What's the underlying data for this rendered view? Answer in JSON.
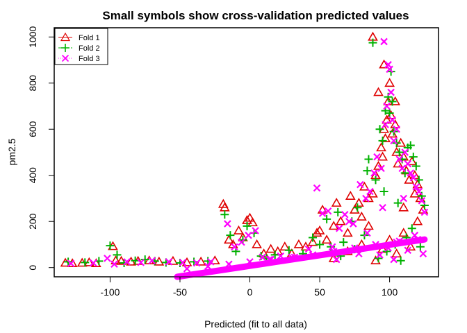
{
  "chart_data": {
    "type": "scatter",
    "title": "Small symbols show cross-validation predicted values",
    "xlabel": "Predicted (fit to all data)",
    "ylabel": "pm2.5",
    "xlim": [
      -140,
      135
    ],
    "ylim": [
      -40,
      1040
    ],
    "x_ticks": [
      -100,
      -50,
      0,
      50,
      100
    ],
    "y_ticks": [
      0,
      200,
      400,
      600,
      800,
      1000
    ],
    "x_tick_labels": [
      "-100",
      "-50",
      "0",
      "50",
      "100"
    ],
    "y_tick_labels": [
      "0",
      "200",
      "400",
      "600",
      "800",
      "1000"
    ],
    "grid": false,
    "legend_position": "top-left",
    "series": [
      {
        "name": "Fold 1",
        "marker": "triangle",
        "color": "#DF0000",
        "points": [
          [
            -132,
            20
          ],
          [
            -127,
            18
          ],
          [
            -120,
            20
          ],
          [
            -115,
            22
          ],
          [
            -110,
            18
          ],
          [
            -98,
            92
          ],
          [
            -96,
            30
          ],
          [
            -92,
            28
          ],
          [
            -85,
            25
          ],
          [
            -80,
            28
          ],
          [
            -72,
            30
          ],
          [
            -65,
            25
          ],
          [
            -55,
            28
          ],
          [
            -45,
            22
          ],
          [
            -35,
            25
          ],
          [
            -25,
            30
          ],
          [
            -19,
            275
          ],
          [
            -18,
            260
          ],
          [
            -15,
            120
          ],
          [
            -12,
            100
          ],
          [
            -8,
            160
          ],
          [
            -5,
            130
          ],
          [
            -2,
            205
          ],
          [
            0,
            215
          ],
          [
            2,
            195
          ],
          [
            5,
            100
          ],
          [
            10,
            60
          ],
          [
            15,
            80
          ],
          [
            20,
            70
          ],
          [
            25,
            90
          ],
          [
            30,
            60
          ],
          [
            35,
            100
          ],
          [
            40,
            90
          ],
          [
            45,
            110
          ],
          [
            48,
            150
          ],
          [
            50,
            160
          ],
          [
            52,
            250
          ],
          [
            55,
            120
          ],
          [
            60,
            180
          ],
          [
            62,
            280
          ],
          [
            65,
            200
          ],
          [
            70,
            150
          ],
          [
            72,
            310
          ],
          [
            75,
            250
          ],
          [
            78,
            280
          ],
          [
            80,
            220
          ],
          [
            82,
            350
          ],
          [
            85,
            300
          ],
          [
            88,
            320
          ],
          [
            90,
            400
          ],
          [
            92,
            440
          ],
          [
            94,
            520
          ],
          [
            95,
            480
          ],
          [
            96,
            600
          ],
          [
            97,
            560
          ],
          [
            98,
            640
          ],
          [
            99,
            720
          ],
          [
            100,
            800
          ],
          [
            101,
            660
          ],
          [
            102,
            580
          ],
          [
            104,
            620
          ],
          [
            105,
            500
          ],
          [
            106,
            450
          ],
          [
            108,
            540
          ],
          [
            110,
            480
          ],
          [
            112,
            420
          ],
          [
            114,
            380
          ],
          [
            116,
            460
          ],
          [
            118,
            400
          ],
          [
            120,
            360
          ],
          [
            122,
            300
          ],
          [
            124,
            250
          ],
          [
            90,
            30
          ],
          [
            95,
            80
          ],
          [
            100,
            120
          ],
          [
            105,
            60
          ],
          [
            110,
            150
          ],
          [
            115,
            90
          ],
          [
            120,
            200
          ],
          [
            88,
            1000
          ],
          [
            92,
            760
          ],
          [
            96,
            880
          ],
          [
            104,
            720
          ],
          [
            60,
            40
          ],
          [
            70,
            70
          ],
          [
            80,
            100
          ],
          [
            85,
            180
          ],
          [
            110,
            260
          ],
          [
            118,
            320
          ]
        ]
      },
      {
        "name": "Fold 2",
        "marker": "plus",
        "color": "#00B200",
        "points": [
          [
            -130,
            25
          ],
          [
            -118,
            22
          ],
          [
            -108,
            28
          ],
          [
            -100,
            95
          ],
          [
            -95,
            55
          ],
          [
            -90,
            20
          ],
          [
            -82,
            30
          ],
          [
            -75,
            35
          ],
          [
            -68,
            28
          ],
          [
            -60,
            22
          ],
          [
            -50,
            20
          ],
          [
            -40,
            25
          ],
          [
            -30,
            28
          ],
          [
            -18,
            230
          ],
          [
            -14,
            140
          ],
          [
            -10,
            70
          ],
          [
            -5,
            120
          ],
          [
            -2,
            180
          ],
          [
            3,
            150
          ],
          [
            8,
            50
          ],
          [
            12,
            40
          ],
          [
            18,
            55
          ],
          [
            28,
            75
          ],
          [
            38,
            60
          ],
          [
            45,
            130
          ],
          [
            50,
            100
          ],
          [
            55,
            210
          ],
          [
            58,
            90
          ],
          [
            63,
            240
          ],
          [
            67,
            110
          ],
          [
            73,
            200
          ],
          [
            77,
            260
          ],
          [
            84,
            420
          ],
          [
            85,
            470
          ],
          [
            88,
            975
          ],
          [
            90,
            380
          ],
          [
            93,
            600
          ],
          [
            95,
            550
          ],
          [
            97,
            680
          ],
          [
            99,
            740
          ],
          [
            100,
            670
          ],
          [
            101,
            850
          ],
          [
            102,
            720
          ],
          [
            103,
            590
          ],
          [
            105,
            540
          ],
          [
            107,
            500
          ],
          [
            109,
            470
          ],
          [
            111,
            410
          ],
          [
            113,
            520
          ],
          [
            115,
            530
          ],
          [
            117,
            480
          ],
          [
            119,
            440
          ],
          [
            121,
            380
          ],
          [
            123,
            310
          ],
          [
            125,
            270
          ],
          [
            92,
            40
          ],
          [
            98,
            70
          ],
          [
            104,
            100
          ],
          [
            108,
            30
          ],
          [
            112,
            130
          ],
          [
            116,
            170
          ],
          [
            122,
            90
          ],
          [
            65,
            50
          ],
          [
            75,
            80
          ],
          [
            82,
            140
          ],
          [
            96,
            330
          ],
          [
            106,
            280
          ]
        ]
      },
      {
        "name": "Fold 3",
        "marker": "cross",
        "color": "#FF00FF",
        "points": [
          [
            -128,
            18
          ],
          [
            -112,
            20
          ],
          [
            -102,
            40
          ],
          [
            -97,
            15
          ],
          [
            -88,
            25
          ],
          [
            -78,
            22
          ],
          [
            -70,
            30
          ],
          [
            -58,
            25
          ],
          [
            -48,
            22
          ],
          [
            -38,
            20
          ],
          [
            -28,
            25
          ],
          [
            -16,
            190
          ],
          [
            -11,
            90
          ],
          [
            -6,
            110
          ],
          [
            -1,
            140
          ],
          [
            4,
            160
          ],
          [
            9,
            45
          ],
          [
            14,
            35
          ],
          [
            22,
            50
          ],
          [
            32,
            45
          ],
          [
            42,
            80
          ],
          [
            48,
            345
          ],
          [
            52,
            235
          ],
          [
            56,
            245
          ],
          [
            59,
            90
          ],
          [
            64,
            170
          ],
          [
            68,
            230
          ],
          [
            71,
            200
          ],
          [
            74,
            190
          ],
          [
            79,
            360
          ],
          [
            83,
            300
          ],
          [
            86,
            330
          ],
          [
            89,
            410
          ],
          [
            91,
            480
          ],
          [
            94,
            430
          ],
          [
            96,
            980
          ],
          [
            97,
            620
          ],
          [
            98,
            700
          ],
          [
            99,
            880
          ],
          [
            100,
            860
          ],
          [
            101,
            760
          ],
          [
            102,
            640
          ],
          [
            103,
            550
          ],
          [
            105,
            600
          ],
          [
            107,
            470
          ],
          [
            109,
            430
          ],
          [
            111,
            500
          ],
          [
            113,
            450
          ],
          [
            115,
            410
          ],
          [
            117,
            390
          ],
          [
            119,
            350
          ],
          [
            121,
            330
          ],
          [
            123,
            290
          ],
          [
            125,
            240
          ],
          [
            93,
            55
          ],
          [
            99,
            85
          ],
          [
            103,
            35
          ],
          [
            107,
            115
          ],
          [
            113,
            75
          ],
          [
            118,
            140
          ],
          [
            124,
            60
          ],
          [
            62,
            35
          ],
          [
            78,
            60
          ],
          [
            84,
            150
          ],
          [
            95,
            260
          ],
          [
            110,
            300
          ],
          [
            -45,
            -5
          ],
          [
            -30,
            5
          ],
          [
            -15,
            15
          ],
          [
            0,
            25
          ],
          [
            15,
            35
          ],
          [
            30,
            45
          ],
          [
            45,
            55
          ],
          [
            60,
            70
          ],
          [
            75,
            85
          ],
          [
            90,
            100
          ],
          [
            105,
            110
          ],
          [
            120,
            122
          ]
        ]
      }
    ]
  }
}
